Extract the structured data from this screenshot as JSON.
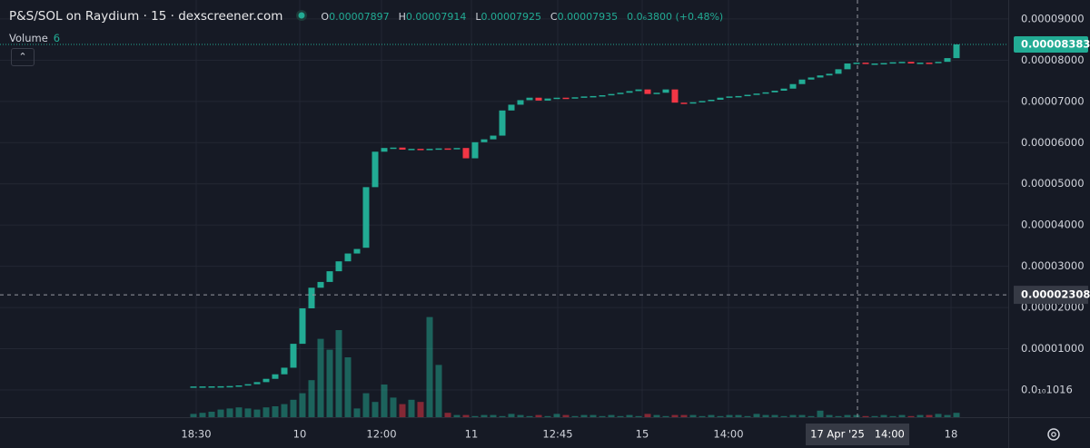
{
  "header": {
    "title": "P&S/SOL on Raydium · 15 · dexscreener.com",
    "o_key": "O",
    "o": "0.00007897",
    "h_key": "H",
    "h": "0.00007914",
    "l_key": "L",
    "l": "0.00007925",
    "c_key": "C",
    "c": "0.00007935",
    "change": "0.0₆3800 (+0.48%)",
    "volume_key": "Volume",
    "volume": "6"
  },
  "chart_data": {
    "type": "candlestick",
    "up_color": "#22ab94",
    "down_color": "#f23645",
    "grid": true,
    "open": [
      8.4e-07,
      8.5e-07,
      8.6e-07,
      8.8e-07,
      9e-07,
      9.5e-07,
      1.1e-06,
      1.4e-06,
      1.9e-06,
      2.7e-06,
      3.8e-06,
      5.4e-06,
      1.12e-05,
      1.98e-05,
      2.48e-05,
      2.62e-05,
      2.88e-05,
      3.12e-05,
      3.31e-05,
      3.45e-05,
      4.92e-05,
      5.78e-05,
      5.87e-05,
      5.88e-05,
      5.83e-05,
      5.85e-05,
      5.84e-05,
      5.85e-05,
      5.86e-05,
      5.85e-05,
      5.87e-05,
      5.62e-05,
      6.01e-05,
      6.08e-05,
      6.17e-05,
      6.78e-05,
      6.92e-05,
      7.03e-05,
      7.09e-05,
      7.02e-05,
      7.07e-05,
      7.09e-05,
      7.08e-05,
      7.1e-05,
      7.12e-05,
      7.13e-05,
      7.15e-05,
      7.18e-05,
      7.21e-05,
      7.25e-05,
      7.29e-05,
      7.18e-05,
      7.21e-05,
      7.29e-05,
      6.97e-05,
      6.96e-05,
      6.98e-05,
      7.01e-05,
      7.04e-05,
      7.09e-05,
      7.12e-05,
      7.13e-05,
      7.16e-05,
      7.19e-05,
      7.22e-05,
      7.26e-05,
      7.31e-05,
      7.42e-05,
      7.53e-05,
      7.58e-05,
      7.63e-05,
      7.67e-05,
      7.78e-05,
      7.92e-05,
      7.94e-05,
      7.91e-05,
      7.92e-05,
      7.93e-05,
      7.95e-05,
      7.96e-05,
      7.92e-05,
      7.94e-05,
      7.93e-05,
      7.96e-05,
      8.05e-05
    ],
    "close": [
      8.5e-07,
      8.6e-07,
      8.8e-07,
      9e-07,
      9.5e-07,
      1.1e-06,
      1.4e-06,
      1.9e-06,
      2.7e-06,
      3.8e-06,
      5.4e-06,
      1.12e-05,
      1.98e-05,
      2.48e-05,
      2.62e-05,
      2.88e-05,
      3.12e-05,
      3.31e-05,
      3.42e-05,
      4.92e-05,
      5.78e-05,
      5.87e-05,
      5.88e-05,
      5.83e-05,
      5.85e-05,
      5.84e-05,
      5.85e-05,
      5.86e-05,
      5.85e-05,
      5.87e-05,
      5.62e-05,
      6.01e-05,
      6.08e-05,
      6.17e-05,
      6.78e-05,
      6.92e-05,
      7.03e-05,
      7.09e-05,
      7.02e-05,
      7.07e-05,
      7.09e-05,
      7.08e-05,
      7.1e-05,
      7.12e-05,
      7.13e-05,
      7.15e-05,
      7.18e-05,
      7.21e-05,
      7.25e-05,
      7.29e-05,
      7.18e-05,
      7.21e-05,
      7.29e-05,
      6.97e-05,
      6.96e-05,
      6.98e-05,
      7.01e-05,
      7.04e-05,
      7.09e-05,
      7.12e-05,
      7.13e-05,
      7.16e-05,
      7.19e-05,
      7.22e-05,
      7.26e-05,
      7.31e-05,
      7.42e-05,
      7.53e-05,
      7.58e-05,
      7.63e-05,
      7.67e-05,
      7.78e-05,
      7.92e-05,
      7.94e-05,
      7.91e-05,
      7.92e-05,
      7.93e-05,
      7.95e-05,
      7.96e-05,
      7.92e-05,
      7.94e-05,
      7.93e-05,
      7.96e-05,
      8.05e-05,
      8.383e-05
    ],
    "volume": [
      3,
      4,
      5,
      7,
      8,
      9,
      8,
      7,
      9,
      10,
      12,
      16,
      22,
      34,
      72,
      62,
      80,
      55,
      8,
      22,
      14,
      30,
      18,
      12,
      16,
      14,
      92,
      48,
      4,
      2,
      2,
      1,
      2,
      2,
      1,
      3,
      2,
      1,
      2,
      1,
      3,
      2,
      1,
      2,
      2,
      1,
      2,
      1,
      2,
      1,
      3,
      2,
      1,
      2,
      2,
      2,
      1,
      2,
      1,
      2,
      2,
      1,
      3,
      2,
      2,
      1,
      2,
      2,
      1,
      6,
      2,
      1,
      2,
      2,
      1,
      1,
      2,
      1,
      2,
      1,
      2,
      2,
      3,
      2,
      4
    ],
    "vlim": [
      0,
      100
    ],
    "xlim": [
      -21.3,
      89.7
    ],
    "xticks": [
      {
        "value": 0.3,
        "label": "18:30"
      },
      {
        "value": 11.7,
        "label": "10"
      },
      {
        "value": 20.7,
        "label": "12:00"
      },
      {
        "value": 30.6,
        "label": "11"
      },
      {
        "value": 40.1,
        "label": "12:45"
      },
      {
        "value": 49.4,
        "label": "15"
      },
      {
        "value": 58.9,
        "label": "14:00"
      },
      {
        "value": 83.4,
        "label": "18"
      }
    ],
    "ylim": [
      -6.6e-06,
      9.46e-05
    ],
    "yticks": [
      {
        "value": 9e-05,
        "label": "0.00009000"
      },
      {
        "value": 8e-05,
        "label": "0.00008000"
      },
      {
        "value": 7e-05,
        "label": "0.00007000"
      },
      {
        "value": 6e-05,
        "label": "0.00006000"
      },
      {
        "value": 5e-05,
        "label": "0.00005000"
      },
      {
        "value": 4e-05,
        "label": "0.00004000"
      },
      {
        "value": 3e-05,
        "label": "0.00003000"
      },
      {
        "value": 2e-05,
        "label": "0.00002000"
      },
      {
        "value": 1e-05,
        "label": "0.00001000"
      },
      {
        "value": 1.016e-11,
        "label": "0.0₁₀1016"
      }
    ],
    "last_price": {
      "value": 8.383e-05,
      "label": "0.00008383"
    },
    "crosshair": {
      "x": {
        "value": 73.1,
        "label": "17 Apr '25   14:00"
      },
      "y": {
        "value": 2.308e-05,
        "label": "0.00002308"
      }
    }
  }
}
